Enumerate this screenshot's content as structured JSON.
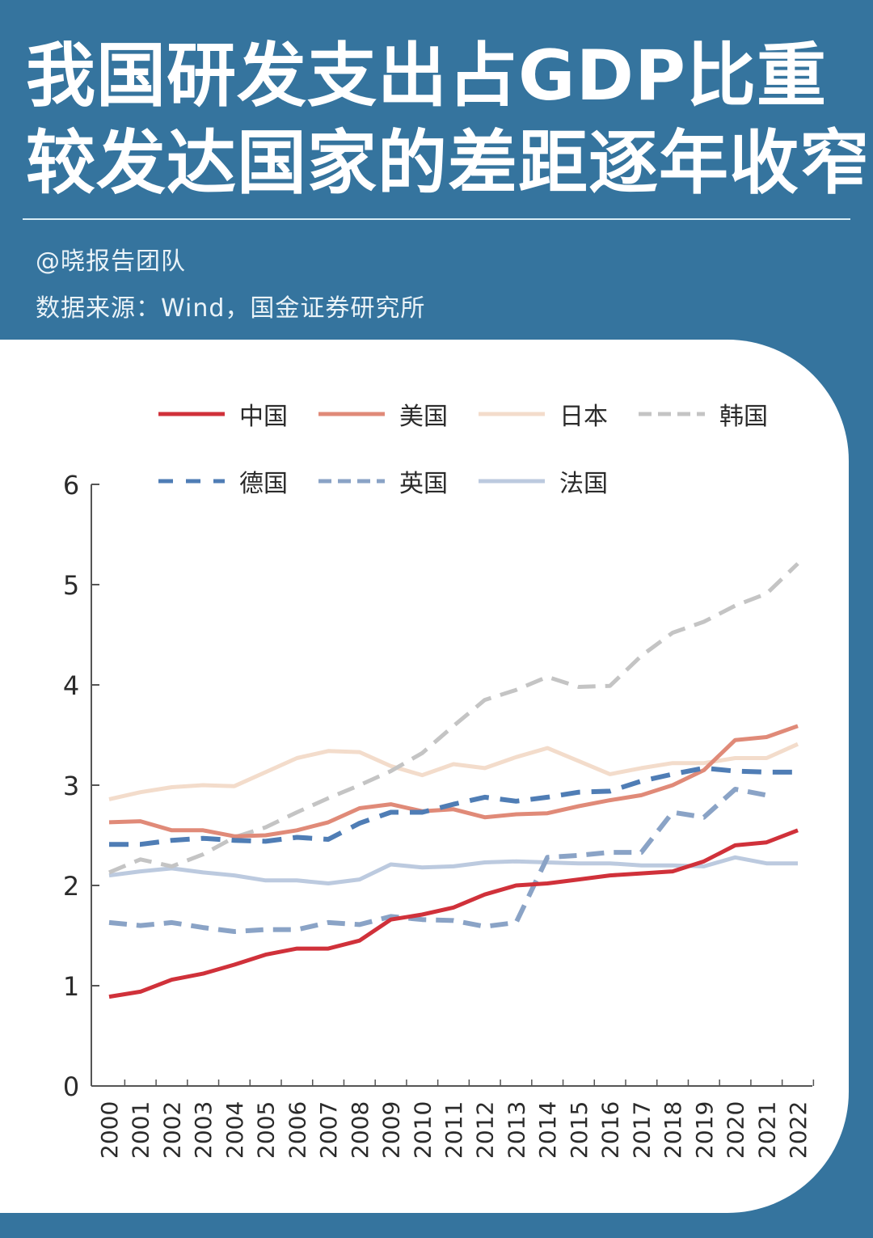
{
  "header": {
    "title_line1": "我国研发支出占GDP比重",
    "title_line2": "较发达国家的差距逐年收窄",
    "author": "@晓报告团队",
    "source": "数据来源：Wind，国金证券研究所"
  },
  "colors": {
    "background": "#35749e",
    "card": "#ffffff",
    "china": "#d0313a",
    "usa": "#e08a78",
    "japan": "#f3dccb",
    "korea": "#c4c4c4",
    "germany": "#4f7db5",
    "uk": "#8aa3c6",
    "france": "#bccadf"
  },
  "legend": [
    {
      "label": "中国",
      "key": "china",
      "dash": "solid"
    },
    {
      "label": "美国",
      "key": "usa",
      "dash": "solid"
    },
    {
      "label": "日本",
      "key": "japan",
      "dash": "solid"
    },
    {
      "label": "韩国",
      "key": "korea",
      "dash": "dashed"
    },
    {
      "label": "德国",
      "key": "germany",
      "dash": "dashed"
    },
    {
      "label": "英国",
      "key": "uk",
      "dash": "dashed"
    },
    {
      "label": "法国",
      "key": "france",
      "dash": "solid"
    }
  ],
  "chart_data": {
    "type": "line",
    "title": "我国研发支出占GDP比重较发达国家的差距逐年收窄",
    "xlabel": "",
    "ylabel": "",
    "ylim": [
      0,
      6
    ],
    "yticks": [
      0,
      1,
      2,
      3,
      4,
      5,
      6
    ],
    "grid": false,
    "legend_position": "top",
    "categories": [
      "2000",
      "2001",
      "2002",
      "2003",
      "2004",
      "2005",
      "2006",
      "2007",
      "2008",
      "2009",
      "2010",
      "2011",
      "2012",
      "2013",
      "2014",
      "2015",
      "2016",
      "2017",
      "2018",
      "2019",
      "2020",
      "2021",
      "2022"
    ],
    "series": [
      {
        "name": "中国",
        "key": "china",
        "values": [
          0.89,
          0.94,
          1.06,
          1.12,
          1.21,
          1.31,
          1.37,
          1.37,
          1.45,
          1.66,
          1.71,
          1.78,
          1.91,
          2.0,
          2.02,
          2.06,
          2.1,
          2.12,
          2.14,
          2.24,
          2.4,
          2.43,
          2.55
        ]
      },
      {
        "name": "美国",
        "key": "usa",
        "values": [
          2.63,
          2.64,
          2.55,
          2.55,
          2.49,
          2.5,
          2.55,
          2.63,
          2.77,
          2.81,
          2.74,
          2.76,
          2.68,
          2.71,
          2.72,
          2.79,
          2.85,
          2.9,
          3.0,
          3.15,
          3.45,
          3.48,
          3.59
        ]
      },
      {
        "name": "日本",
        "key": "japan",
        "values": [
          2.86,
          2.93,
          2.98,
          3.0,
          2.99,
          3.13,
          3.27,
          3.34,
          3.33,
          3.19,
          3.1,
          3.21,
          3.17,
          3.28,
          3.37,
          3.24,
          3.11,
          3.17,
          3.22,
          3.22,
          3.27,
          3.27,
          3.41
        ]
      },
      {
        "name": "韩国",
        "key": "korea",
        "values": [
          2.13,
          2.26,
          2.19,
          2.31,
          2.48,
          2.58,
          2.73,
          2.87,
          3.0,
          3.14,
          3.32,
          3.59,
          3.85,
          3.95,
          4.08,
          3.98,
          3.99,
          4.29,
          4.52,
          4.63,
          4.79,
          4.91,
          5.21
        ]
      },
      {
        "name": "德国",
        "key": "germany",
        "values": [
          2.41,
          2.41,
          2.45,
          2.47,
          2.45,
          2.44,
          2.48,
          2.46,
          2.62,
          2.73,
          2.73,
          2.81,
          2.88,
          2.84,
          2.88,
          2.93,
          2.94,
          3.04,
          3.11,
          3.17,
          3.14,
          3.13,
          3.13
        ]
      },
      {
        "name": "英国",
        "key": "uk",
        "values": [
          1.63,
          1.6,
          1.63,
          1.58,
          1.54,
          1.56,
          1.56,
          1.63,
          1.61,
          1.69,
          1.66,
          1.65,
          1.59,
          1.63,
          2.28,
          2.3,
          2.33,
          2.33,
          2.73,
          2.68,
          2.96,
          2.9,
          null
        ]
      },
      {
        "name": "法国",
        "key": "france",
        "values": [
          2.1,
          2.14,
          2.17,
          2.13,
          2.1,
          2.05,
          2.05,
          2.02,
          2.06,
          2.21,
          2.18,
          2.19,
          2.23,
          2.24,
          2.23,
          2.22,
          2.22,
          2.2,
          2.2,
          2.19,
          2.28,
          2.22,
          2.22
        ]
      }
    ]
  }
}
